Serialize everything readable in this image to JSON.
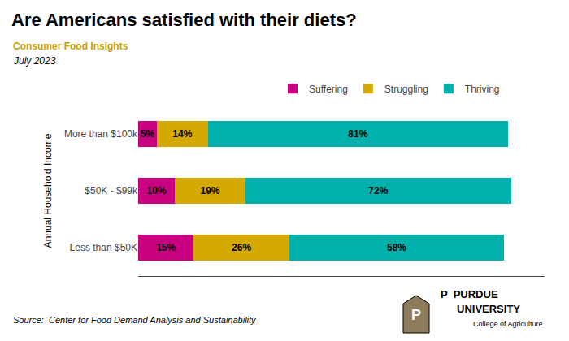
{
  "chart_data": {
    "type": "bar",
    "orientation": "horizontal",
    "stacked": true,
    "title": "Are Americans satisfied with their diets?",
    "subtitle": [
      "Consumer Food Insights",
      "July 2023"
    ],
    "annotations": [
      "Source:  Center for Food Demand Analysis and Sustainability",
      "P  PURDUE",
      "UNIVERSITY",
      "College of Agriculture",
      "P"
    ],
    "categories": [
      "Less than $50K",
      "$50K - $99k",
      "More than $100k"
    ],
    "ylabel": "Annual Household Income",
    "series": [
      {
        "name": "Suffering",
        "color": "#C8007F",
        "values": [
          15,
          10,
          5
        ],
        "value_labels": [
          "15%",
          "10%",
          "5%"
        ]
      },
      {
        "name": "Struggling",
        "color": "#D4A900",
        "values": [
          26,
          19,
          14
        ],
        "value_labels": [
          "26%",
          "19%",
          "14%"
        ]
      },
      {
        "name": "Thriving",
        "color": "#00B0AA",
        "values": [
          58,
          72,
          81
        ],
        "value_labels": [
          "58%",
          "72%",
          "81%"
        ]
      }
    ],
    "xlim": [
      0,
      110
    ],
    "data_labels": true,
    "tick_labels": "y",
    "grid": false,
    "legend": "top"
  }
}
